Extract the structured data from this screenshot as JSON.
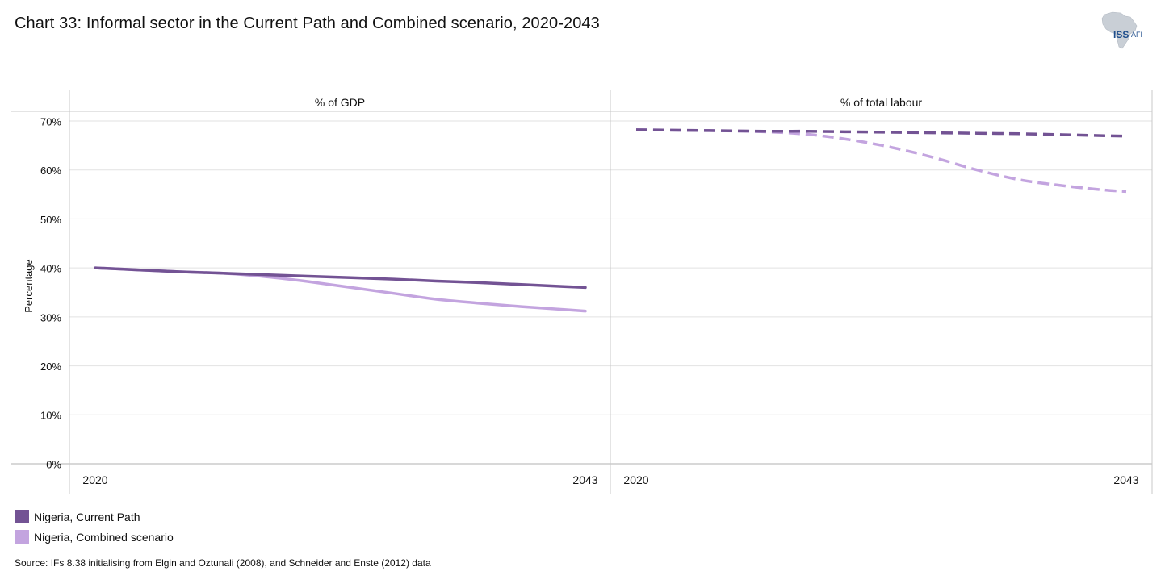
{
  "title": "Chart 33: Informal sector in the Current Path and Combined scenario, 2020-2043",
  "logo": {
    "text_main": "ISS",
    "text_sub": "AFI"
  },
  "colors": {
    "current_path": "#735394",
    "combined": "#c3a4df",
    "grid": "#e2e2e2",
    "frame": "#c8c8c8"
  },
  "chart_data": {
    "type": "line",
    "ylabel": "Percentage",
    "ylim": [
      0,
      70
    ],
    "yticks": [
      0,
      10,
      20,
      30,
      40,
      50,
      60,
      70
    ],
    "ytick_labels": [
      "0%",
      "10%",
      "20%",
      "30%",
      "40%",
      "50%",
      "60%",
      "70%"
    ],
    "xlim": [
      2020,
      2043
    ],
    "xtick_labels": [
      "2020",
      "2043"
    ],
    "grid": true,
    "panels": [
      {
        "label": "% of GDP",
        "style": "solid",
        "x": [
          2020,
          2022,
          2024,
          2026,
          2028,
          2030,
          2032,
          2034,
          2036,
          2038,
          2040,
          2042,
          2043
        ],
        "series": [
          {
            "name": "Nigeria, Current Path",
            "values": [
              40.0,
              39.6,
              39.2,
              38.9,
              38.6,
              38.3,
              38.0,
              37.7,
              37.3,
              37.0,
              36.6,
              36.2,
              36.0
            ]
          },
          {
            "name": "Nigeria, Combined scenario",
            "values": [
              40.0,
              39.6,
              39.2,
              38.9,
              38.2,
              37.2,
              36.0,
              34.8,
              33.6,
              32.8,
              32.1,
              31.5,
              31.2
            ]
          }
        ]
      },
      {
        "label": "% of total labour",
        "style": "dashed",
        "x": [
          2020,
          2022,
          2024,
          2026,
          2028,
          2030,
          2032,
          2034,
          2036,
          2038,
          2040,
          2042,
          2043
        ],
        "series": [
          {
            "name": "Nigeria, Current Path",
            "values": [
              68.2,
              68.1,
              68.0,
              67.9,
              67.9,
              67.8,
              67.7,
              67.6,
              67.5,
              67.4,
              67.2,
              67.0,
              66.9
            ]
          },
          {
            "name": "Nigeria, Combined scenario",
            "values": [
              68.2,
              68.1,
              68.0,
              67.8,
              67.3,
              66.2,
              64.6,
              62.5,
              60.0,
              58.0,
              56.8,
              55.9,
              55.6
            ]
          }
        ]
      }
    ]
  },
  "legend": [
    {
      "label": "Nigeria, Current Path",
      "color": "#735394"
    },
    {
      "label": "Nigeria, Combined scenario",
      "color": "#c3a4df"
    }
  ],
  "source": "Source: IFs 8.38 initialising from Elgin and Oztunali (2008), and Schneider and Enste (2012) data"
}
